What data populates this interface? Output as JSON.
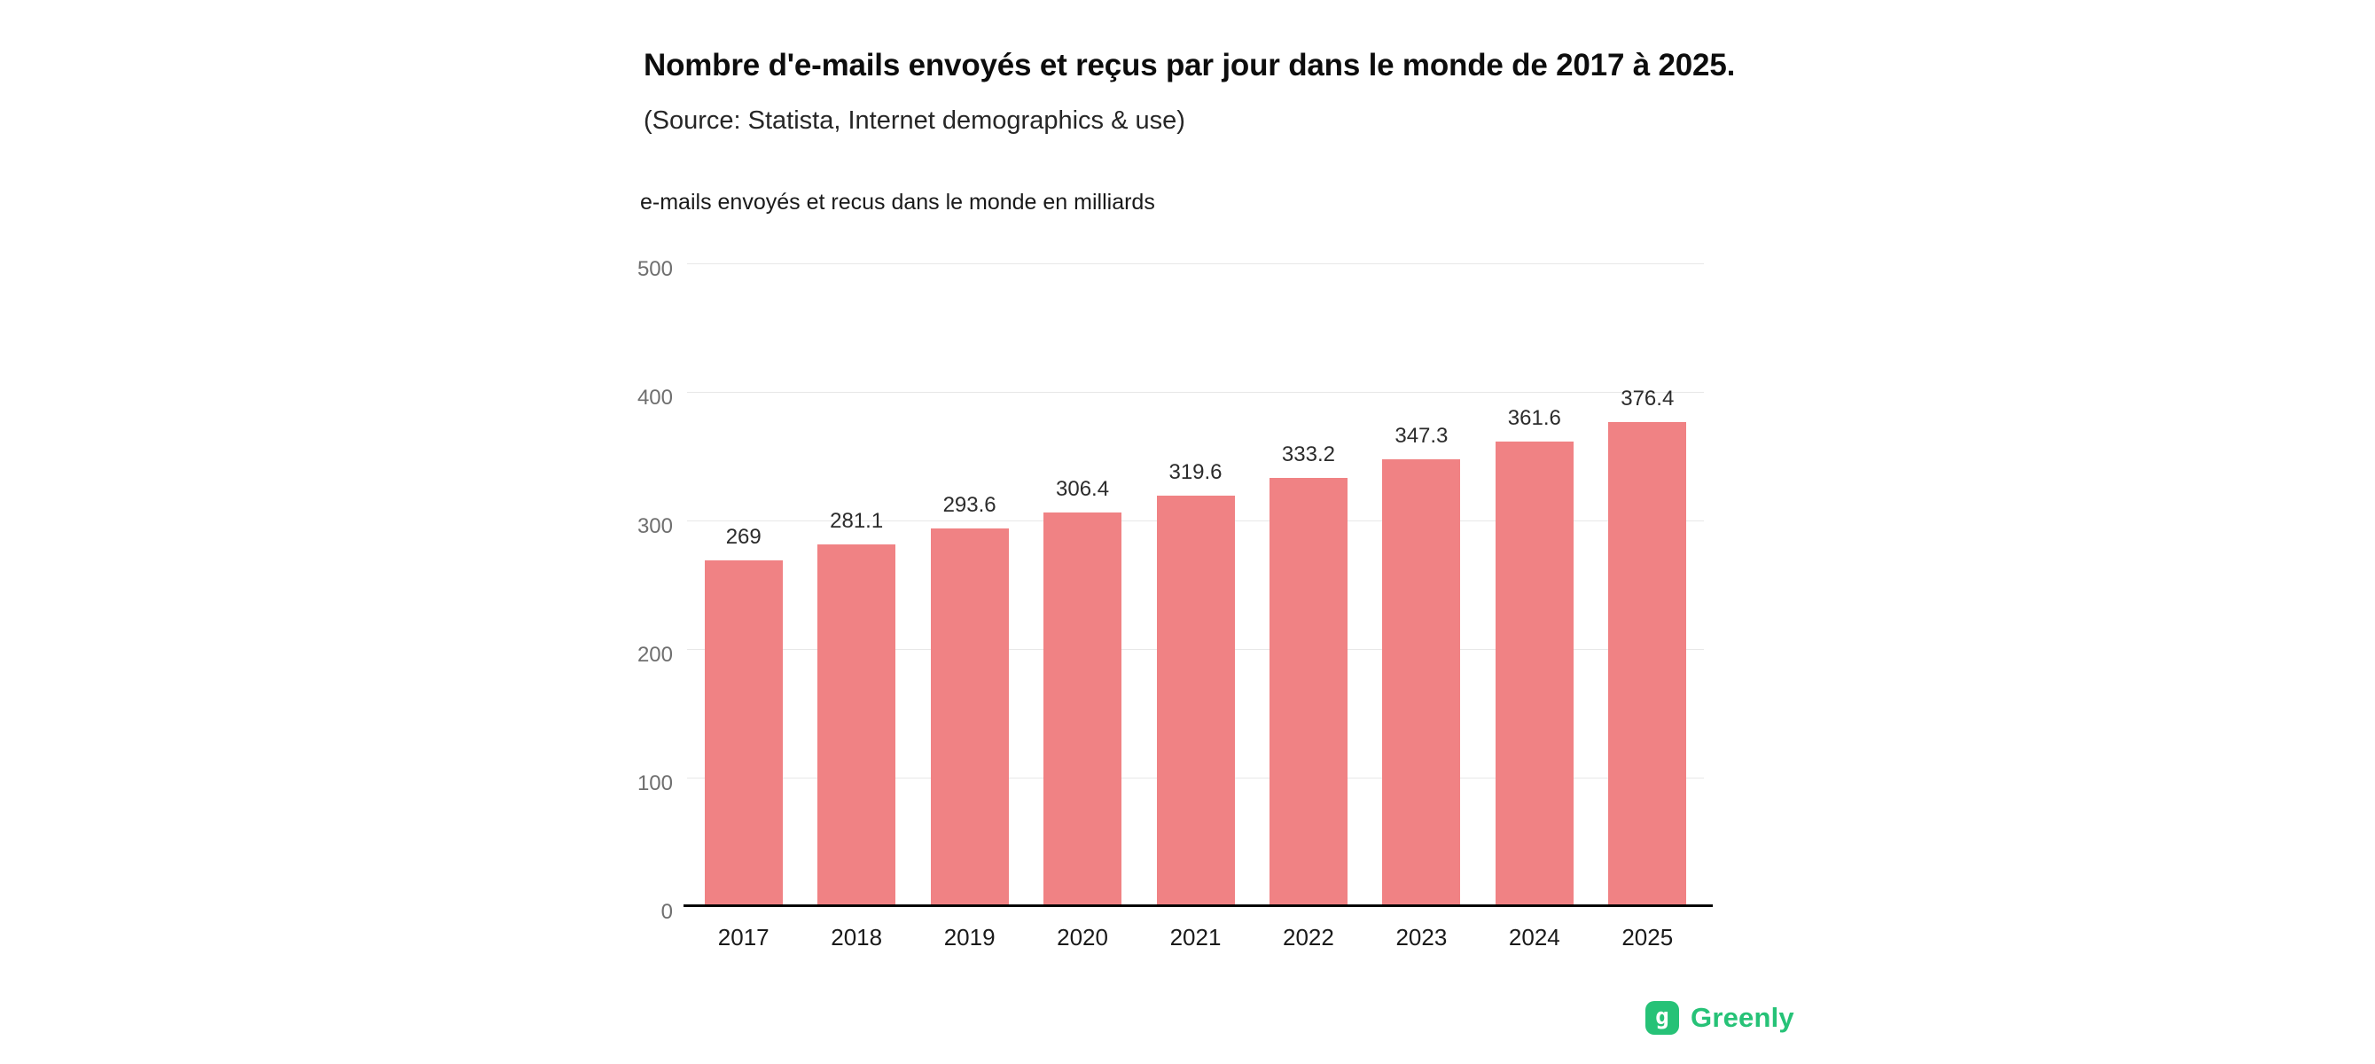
{
  "chart_data": {
    "type": "bar",
    "title": "Nombre d'e-mails envoyés et reçus par jour dans le monde de 2017 à 2025.",
    "subtitle": "(Source: Statista, Internet demographics & use)",
    "axis_title": "e-mails envoyés et recus dans le monde en milliards",
    "categories": [
      "2017",
      "2018",
      "2019",
      "2020",
      "2021",
      "2022",
      "2023",
      "2024",
      "2025"
    ],
    "values": [
      269,
      281.1,
      293.6,
      306.4,
      319.6,
      333.2,
      347.3,
      361.6,
      376.4
    ],
    "value_labels": [
      "269",
      "281.1",
      "293.6",
      "306.4",
      "319.6",
      "333.2",
      "347.3",
      "361.6",
      "376.4"
    ],
    "ylim": [
      0,
      500
    ],
    "yticks": [
      0,
      100,
      200,
      300,
      400,
      500
    ],
    "grid": true,
    "legend": "none",
    "bar_color": "#f08284",
    "grid_color": "#e8e8e8",
    "baseline_color": "#000000",
    "tick_color": "#6f6f6f"
  },
  "branding": {
    "logo_text": "Greenly",
    "logo_icon_letter": "g",
    "logo_color": "#26c277"
  }
}
